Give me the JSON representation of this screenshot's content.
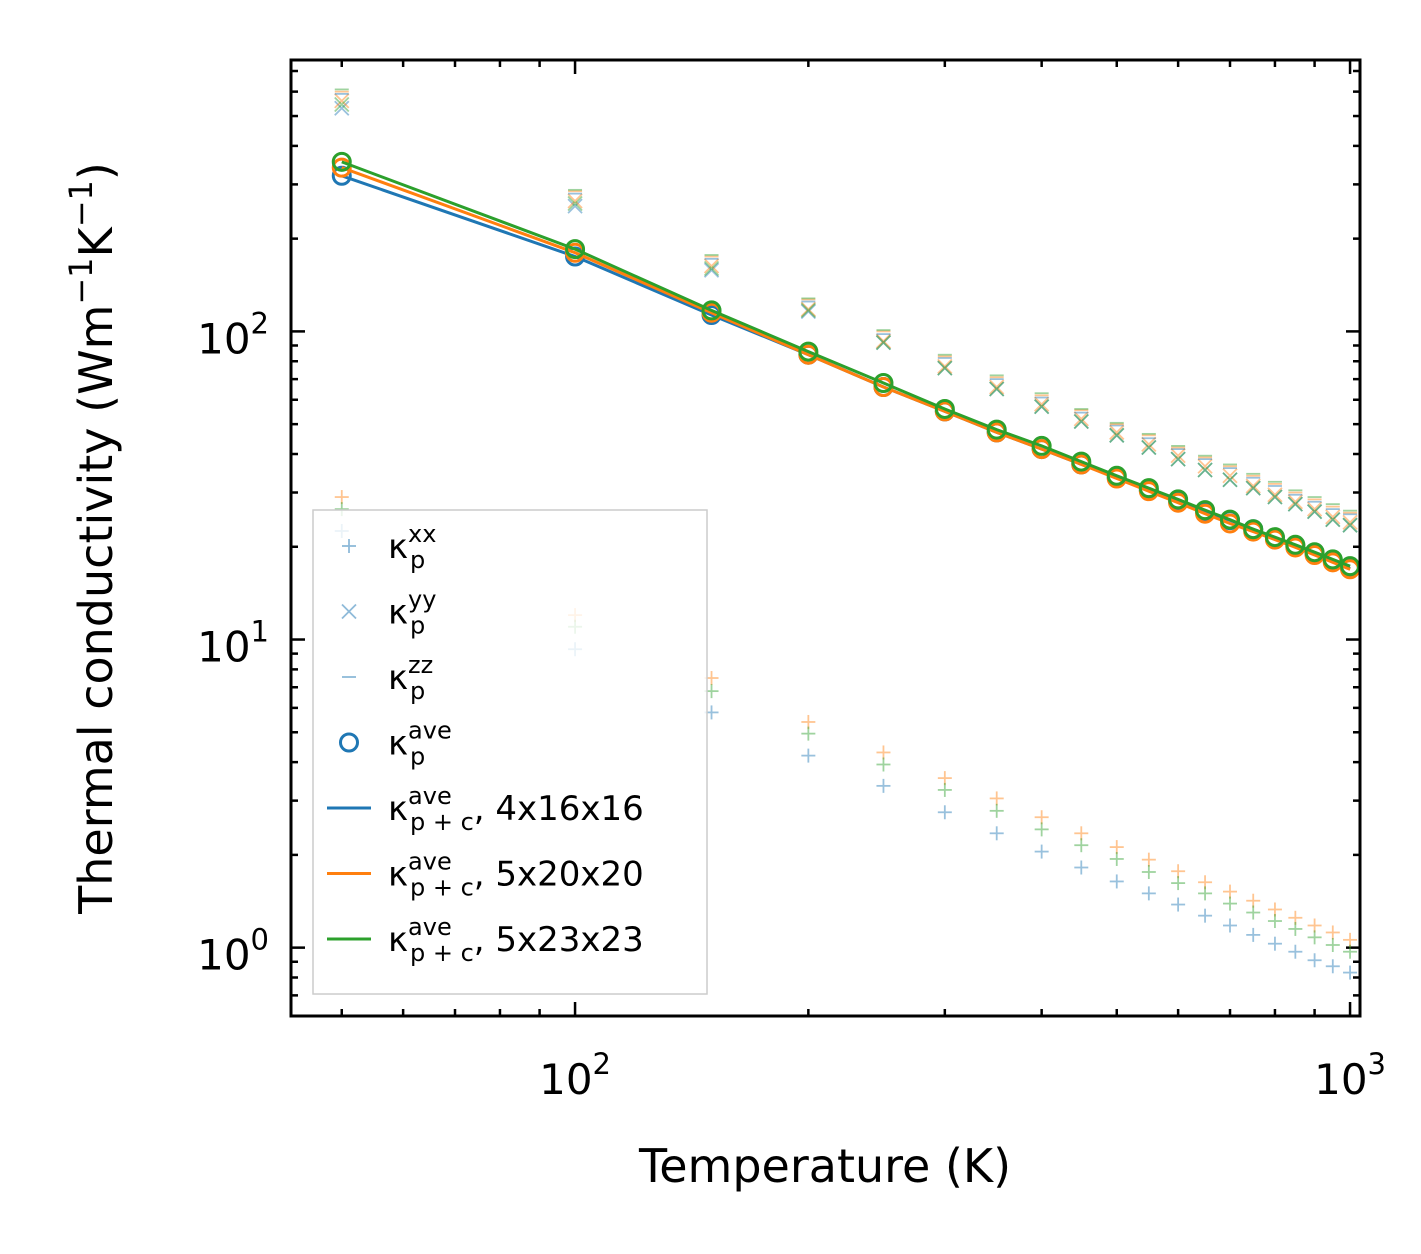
{
  "chart_data": {
    "type": "scatter",
    "scale": "log-log",
    "xlabel": "Temperature (K)",
    "ylabel_main": "Thermal conductivity (Wm",
    "ylabel_exp1": "−1",
    "ylabel_mid": "K",
    "ylabel_exp2": "−1",
    "ylabel_end": ")",
    "xlim": [
      43,
      1030
    ],
    "ylim": [
      0.6,
      760
    ],
    "x_ticks": [
      {
        "value": 100,
        "base": "10",
        "exp": "2"
      },
      {
        "value": 1000,
        "base": "10",
        "exp": "3"
      }
    ],
    "y_ticks": [
      {
        "value": 1,
        "base": "10",
        "exp": "0"
      },
      {
        "value": 10,
        "base": "10",
        "exp": "1"
      },
      {
        "value": 100,
        "base": "10",
        "exp": "2"
      }
    ],
    "x": [
      50,
      100,
      150,
      200,
      250,
      300,
      350,
      400,
      450,
      500,
      550,
      600,
      650,
      700,
      750,
      800,
      850,
      900,
      950,
      1000
    ],
    "colors": {
      "blue": "#1f77b4",
      "orange": "#ff7f0e",
      "green": "#2ca02c"
    },
    "legend": [
      {
        "key": "kxx",
        "marker": "+",
        "base": "κ",
        "sub": "p",
        "sup": "xx",
        "suffix": ""
      },
      {
        "key": "kyy",
        "marker": "x",
        "base": "κ",
        "sub": "p",
        "sup": "yy",
        "suffix": ""
      },
      {
        "key": "kzz",
        "marker": "_",
        "base": "κ",
        "sub": "p",
        "sup": "zz",
        "suffix": ""
      },
      {
        "key": "kave",
        "marker": "o",
        "base": "κ",
        "sub": "p",
        "sup": "ave",
        "suffix": ""
      },
      {
        "key": "line1",
        "marker": "line",
        "color": "blue",
        "base": "κ",
        "sub": "p + c",
        "sup": "ave",
        "suffix": ", 4x16x16"
      },
      {
        "key": "line2",
        "marker": "line",
        "color": "orange",
        "base": "κ",
        "sub": "p + c",
        "sup": "ave",
        "suffix": ", 5x20x20"
      },
      {
        "key": "line3",
        "marker": "line",
        "color": "green",
        "base": "κ",
        "sub": "p + c",
        "sup": "ave",
        "suffix": ", 5x23x23"
      }
    ],
    "series": [
      {
        "name": "κp,ave 4x16x16",
        "color": "blue",
        "values": [
          320,
          175,
          113,
          84,
          66,
          55,
          47,
          41.5,
          37,
          33.5,
          30.5,
          28,
          26,
          24.4,
          22.8,
          21.4,
          20.1,
          19,
          18,
          17
        ]
      },
      {
        "name": "κp,ave 5x20x20",
        "color": "orange",
        "values": [
          340,
          180,
          115,
          84,
          66,
          55,
          47,
          41.5,
          37,
          33.3,
          30.3,
          27.8,
          25.6,
          23.8,
          22.4,
          21.1,
          19.9,
          18.8,
          17.8,
          16.9
        ]
      },
      {
        "name": "κp,ave 5x23x23",
        "color": "green",
        "values": [
          355,
          185,
          117,
          86,
          68,
          56,
          48,
          42.5,
          37.8,
          34,
          31,
          28.5,
          26.3,
          24.5,
          22.8,
          21.5,
          20.3,
          19.2,
          18.2,
          17.3
        ]
      },
      {
        "name": "κp,yy blue",
        "color": "blue",
        "marker": "x",
        "values": [
          530,
          255,
          158,
          116,
          92,
          76,
          65,
          57,
          51,
          46,
          42,
          38.5,
          35.5,
          33,
          31,
          29,
          27.5,
          26,
          24.5,
          23.5
        ]
      },
      {
        "name": "κp,yy orange",
        "color": "orange",
        "marker": "x",
        "values": [
          560,
          265,
          163,
          118,
          93,
          77,
          66,
          58,
          52,
          47,
          43,
          39.5,
          36.5,
          34,
          31.5,
          29.5,
          28,
          26.5,
          25,
          24
        ]
      },
      {
        "name": "κp,yy green",
        "color": "green",
        "marker": "x",
        "values": [
          545,
          260,
          160,
          117,
          92,
          76,
          65,
          57,
          51,
          46,
          42,
          38.5,
          35.5,
          33,
          31,
          29,
          27.5,
          26,
          24.5,
          23.5
        ]
      },
      {
        "name": "κp,zz blue",
        "color": "blue",
        "marker": "_",
        "values": [
          590,
          280,
          172,
          125,
          98,
          82,
          70,
          61,
          54.5,
          49.5,
          45,
          41.5,
          38.5,
          36,
          33.5,
          31.5,
          29.5,
          28,
          26.5,
          25.5
        ]
      },
      {
        "name": "κp,zz orange",
        "color": "orange",
        "marker": "_",
        "values": [
          600,
          285,
          175,
          127,
          100,
          83,
          71,
          62,
          55.5,
          50,
          46,
          42,
          39,
          36.5,
          34,
          32,
          30,
          28.5,
          27,
          25.8
        ]
      },
      {
        "name": "κp,zz green",
        "color": "green",
        "marker": "_",
        "values": [
          610,
          288,
          177,
          128,
          101,
          84,
          72,
          63,
          56,
          50.5,
          46.5,
          42.5,
          39.5,
          37,
          34.5,
          32.5,
          30.5,
          29,
          27.5,
          26.2
        ]
      },
      {
        "name": "κp,xx blue",
        "color": "blue",
        "marker": "+",
        "values": [
          22.5,
          9.3,
          5.8,
          4.2,
          3.35,
          2.75,
          2.35,
          2.05,
          1.82,
          1.64,
          1.5,
          1.38,
          1.27,
          1.18,
          1.1,
          1.03,
          0.97,
          0.91,
          0.87,
          0.83
        ]
      },
      {
        "name": "κp,xx orange",
        "color": "orange",
        "marker": "+",
        "values": [
          29,
          12,
          7.5,
          5.4,
          4.3,
          3.55,
          3.05,
          2.65,
          2.35,
          2.12,
          1.93,
          1.77,
          1.63,
          1.52,
          1.42,
          1.33,
          1.25,
          1.18,
          1.12,
          1.06
        ]
      },
      {
        "name": "κp,xx green",
        "color": "green",
        "marker": "+",
        "values": [
          26.5,
          11,
          6.8,
          4.95,
          3.93,
          3.25,
          2.78,
          2.42,
          2.15,
          1.94,
          1.76,
          1.62,
          1.5,
          1.39,
          1.3,
          1.22,
          1.15,
          1.08,
          1.02,
          0.97
        ]
      }
    ]
  }
}
